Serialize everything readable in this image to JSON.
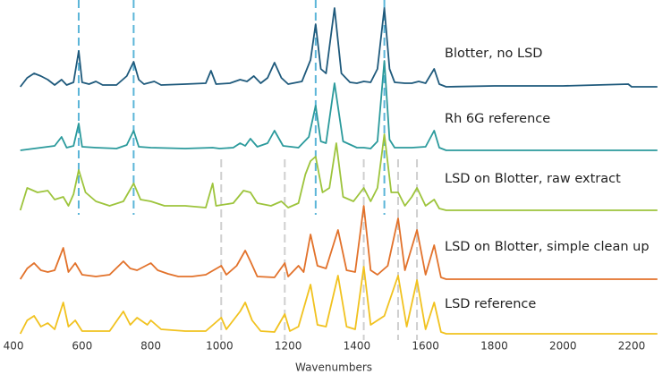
{
  "chart_data": {
    "type": "line",
    "x_label": "Wavenumbers",
    "xlim": [
      390,
      2280
    ],
    "xticks": [
      400,
      600,
      800,
      1000,
      1200,
      1400,
      1600,
      1800,
      2000,
      2200
    ],
    "grid": false,
    "markers": [
      {
        "color": "#5bb5d8",
        "x": [
          590,
          750,
          1280,
          1480
        ]
      },
      {
        "color": "#cfcfcf",
        "x": [
          1005,
          1190,
          1420,
          1520,
          1575
        ]
      }
    ],
    "series": [
      {
        "name": "Blotter, no LSD",
        "color": "#1f5a7c",
        "x": [
          420,
          440,
          460,
          480,
          500,
          520,
          540,
          555,
          575,
          590,
          600,
          620,
          640,
          660,
          700,
          730,
          750,
          765,
          780,
          810,
          830,
          900,
          960,
          975,
          990,
          1030,
          1060,
          1080,
          1100,
          1120,
          1140,
          1160,
          1180,
          1200,
          1240,
          1265,
          1280,
          1295,
          1310,
          1335,
          1355,
          1380,
          1400,
          1420,
          1440,
          1460,
          1480,
          1495,
          1510,
          1540,
          1560,
          1580,
          1600,
          1625,
          1640,
          1660,
          1800,
          2000,
          2190,
          2200,
          2275
        ],
        "values": [
          0,
          10,
          15,
          12,
          8,
          2,
          8,
          2,
          5,
          40,
          5,
          3,
          6,
          2,
          2,
          12,
          28,
          8,
          3,
          6,
          2,
          3,
          4,
          18,
          3,
          4,
          8,
          6,
          12,
          4,
          10,
          27,
          10,
          3,
          6,
          30,
          70,
          20,
          15,
          88,
          15,
          5,
          4,
          6,
          5,
          20,
          88,
          20,
          5,
          4,
          4,
          6,
          4,
          20,
          3,
          0,
          1,
          1,
          3,
          0,
          0
        ]
      },
      {
        "name": "Rh 6G reference",
        "color": "#2b9a9c",
        "x": [
          420,
          480,
          520,
          540,
          555,
          575,
          590,
          600,
          640,
          700,
          730,
          750,
          765,
          800,
          900,
          980,
          1000,
          1040,
          1060,
          1075,
          1090,
          1110,
          1140,
          1160,
          1185,
          1230,
          1260,
          1280,
          1295,
          1310,
          1335,
          1360,
          1400,
          1420,
          1440,
          1460,
          1480,
          1495,
          1510,
          1560,
          1600,
          1625,
          1640,
          1660,
          2275
        ],
        "values": [
          0,
          3,
          5,
          15,
          3,
          5,
          30,
          4,
          3,
          2,
          6,
          22,
          4,
          3,
          2,
          3,
          2,
          3,
          8,
          5,
          13,
          4,
          8,
          22,
          5,
          3,
          15,
          50,
          10,
          8,
          75,
          10,
          3,
          3,
          2,
          10,
          100,
          12,
          3,
          3,
          4,
          22,
          3,
          0,
          0
        ]
      },
      {
        "name": "LSD on Blotter, raw extract",
        "color": "#9dc43c",
        "x": [
          420,
          440,
          470,
          500,
          520,
          545,
          560,
          575,
          590,
          610,
          640,
          680,
          720,
          750,
          770,
          800,
          840,
          900,
          960,
          980,
          990,
          1040,
          1070,
          1090,
          1110,
          1150,
          1180,
          1200,
          1230,
          1250,
          1265,
          1280,
          1300,
          1320,
          1340,
          1360,
          1390,
          1420,
          1440,
          1460,
          1480,
          1500,
          1520,
          1540,
          1560,
          1575,
          1600,
          1625,
          1640,
          1660,
          2275
        ],
        "values": [
          0,
          25,
          20,
          22,
          12,
          15,
          5,
          18,
          45,
          20,
          10,
          5,
          10,
          30,
          12,
          10,
          5,
          5,
          3,
          30,
          5,
          8,
          22,
          20,
          8,
          5,
          10,
          3,
          8,
          40,
          55,
          60,
          20,
          25,
          75,
          15,
          10,
          25,
          10,
          25,
          85,
          20,
          20,
          5,
          15,
          25,
          5,
          12,
          2,
          0,
          0
        ]
      },
      {
        "name": "LSD on Blotter, simple clean up",
        "color": "#e2722b",
        "x": [
          420,
          440,
          460,
          480,
          500,
          520,
          545,
          560,
          580,
          600,
          640,
          680,
          720,
          740,
          760,
          800,
          820,
          850,
          880,
          920,
          960,
          1005,
          1020,
          1050,
          1075,
          1090,
          1110,
          1160,
          1190,
          1200,
          1230,
          1245,
          1265,
          1285,
          1310,
          1345,
          1370,
          1395,
          1420,
          1440,
          1460,
          1490,
          1520,
          1540,
          1575,
          1600,
          1625,
          1645,
          1660,
          2275
        ],
        "values": [
          0,
          12,
          18,
          10,
          8,
          10,
          35,
          8,
          18,
          5,
          3,
          5,
          20,
          12,
          10,
          18,
          10,
          6,
          3,
          3,
          5,
          15,
          5,
          15,
          32,
          20,
          3,
          2,
          18,
          3,
          15,
          8,
          50,
          15,
          12,
          55,
          10,
          8,
          82,
          10,
          5,
          15,
          68,
          10,
          55,
          5,
          38,
          2,
          0,
          0
        ]
      },
      {
        "name": "LSD reference",
        "color": "#f1c21f",
        "x": [
          420,
          440,
          460,
          480,
          500,
          520,
          545,
          560,
          580,
          600,
          680,
          720,
          740,
          760,
          790,
          800,
          830,
          900,
          960,
          1005,
          1020,
          1060,
          1075,
          1095,
          1120,
          1160,
          1190,
          1205,
          1230,
          1265,
          1285,
          1310,
          1345,
          1370,
          1395,
          1420,
          1440,
          1480,
          1520,
          1545,
          1575,
          1600,
          1625,
          1645,
          1660,
          2275
        ],
        "values": [
          0,
          15,
          20,
          8,
          12,
          5,
          35,
          8,
          15,
          3,
          3,
          25,
          10,
          18,
          10,
          15,
          5,
          3,
          3,
          18,
          5,
          25,
          35,
          15,
          3,
          2,
          22,
          3,
          8,
          55,
          10,
          8,
          65,
          8,
          5,
          75,
          10,
          20,
          65,
          8,
          60,
          5,
          35,
          2,
          0,
          0
        ]
      }
    ]
  }
}
